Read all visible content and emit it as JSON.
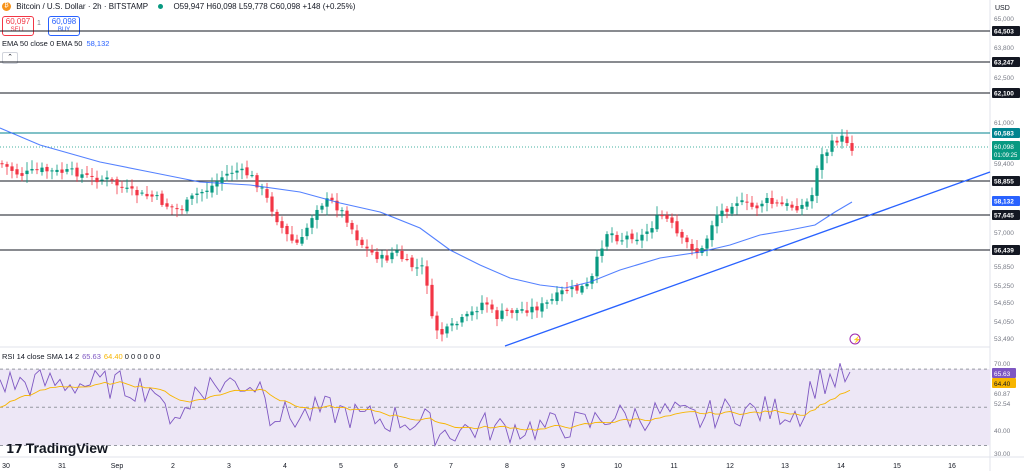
{
  "header": {
    "symbol_name": "Bitcoin / U.S. Dollar · 2h · BITSTAMP",
    "ohlc": "O59,947  H60,098  L59,778  C60,098  +148 (+0.25%)"
  },
  "trade": {
    "sell_price": "60,097",
    "sell_label": "SELL",
    "spread": "1",
    "buy_price": "60,098",
    "buy_label": "BUY"
  },
  "ema": {
    "label": "EMA 50 close 0 EMA 50",
    "value": "58,132"
  },
  "collapse_icon": "chevron-up-icon",
  "rsi": {
    "label": "RSI 14 close SMA 14 2",
    "value1": "65.63",
    "value2": "64.40",
    "zeros": "0 0 0 0 0 0"
  },
  "price_axis": {
    "currency": "USD",
    "ticks": [
      "65,000",
      "63,800",
      "62,500",
      "61,000",
      "59,400",
      "57,000",
      "55,850",
      "55,250",
      "54,650",
      "54,050",
      "53,490"
    ],
    "level_labels": [
      "64,503",
      "63,247",
      "62,100",
      "60,583",
      "58,855",
      "58,132",
      "57,645",
      "56,439"
    ],
    "current_price": "60,098",
    "countdown": "01:09:25"
  },
  "rsi_axis": {
    "ticks": [
      "70.00",
      "60.87",
      "52.54",
      "40.00",
      "30.00"
    ],
    "current_rsi": "65.63",
    "current_sma": "64.40"
  },
  "time_axis": [
    "30",
    "31",
    "Sep",
    "2",
    "3",
    "4",
    "5",
    "6",
    "7",
    "8",
    "9",
    "10",
    "11",
    "12",
    "13",
    "14",
    "15",
    "16"
  ],
  "colors": {
    "up": "#089981",
    "down": "#f23645",
    "ema": "#2962ff",
    "trendline": "#2962ff",
    "resistance": "#00838f",
    "rsi": "#7e57c2",
    "rsi_sma": "#f7b500",
    "rsi_band": "#ede7f6"
  },
  "branding": "TradingView",
  "chart_data": {
    "type": "candlestick",
    "ylim": [
      53000,
      65500
    ],
    "levels": [
      64503,
      63247,
      62100,
      60583,
      58855,
      57645,
      56439
    ],
    "ema50_value": 58132,
    "rsi_range": [
      25,
      80
    ]
  }
}
